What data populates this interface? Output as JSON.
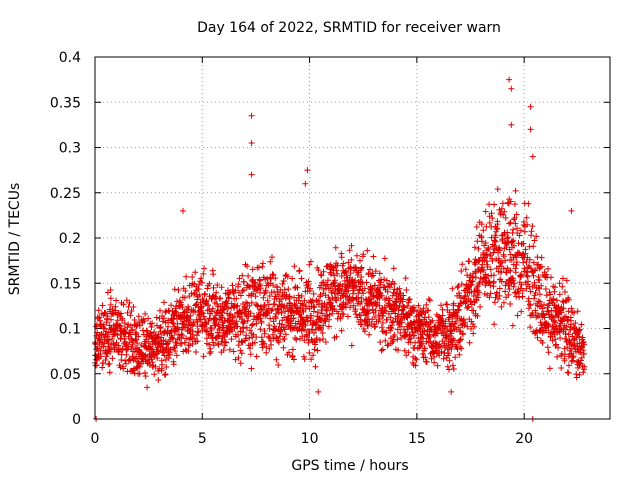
{
  "chart_data": {
    "type": "scatter",
    "title": "Day 164 of 2022, SRMTID for receiver warn",
    "xlabel": "GPS time / hours",
    "ylabel": "SRMTID / TECUs",
    "xlim": [
      0,
      24
    ],
    "ylim": [
      0,
      0.4
    ],
    "xticks": [
      0,
      5,
      10,
      15,
      20
    ],
    "xtick_labels": [
      "0",
      "5",
      "10",
      "15",
      "20"
    ],
    "yticks": [
      0,
      0.05,
      0.1,
      0.15,
      0.2,
      0.25,
      0.3,
      0.35,
      0.4
    ],
    "ytick_labels": [
      "0",
      "0.05",
      "0.1",
      "0.15",
      "0.2",
      "0.25",
      "0.3",
      "0.35",
      "0.4"
    ],
    "grid": true,
    "marker": "plus",
    "marker_color": "#e00000",
    "sampling_interval_hours": 0.0125,
    "series": [
      {
        "name": "SRMTID",
        "envelope_note": "dense cloud of points; typical values per hour (approx.)",
        "hour_profile": [
          {
            "hour": 0,
            "center": 0.08,
            "spread": 0.03
          },
          {
            "hour": 1,
            "center": 0.1,
            "spread": 0.04
          },
          {
            "hour": 2,
            "center": 0.08,
            "spread": 0.03
          },
          {
            "hour": 3,
            "center": 0.08,
            "spread": 0.03
          },
          {
            "hour": 4,
            "center": 0.11,
            "spread": 0.04
          },
          {
            "hour": 5,
            "center": 0.12,
            "spread": 0.04
          },
          {
            "hour": 6,
            "center": 0.11,
            "spread": 0.04
          },
          {
            "hour": 7,
            "center": 0.12,
            "spread": 0.05
          },
          {
            "hour": 8,
            "center": 0.12,
            "spread": 0.05
          },
          {
            "hour": 9,
            "center": 0.12,
            "spread": 0.04
          },
          {
            "hour": 10,
            "center": 0.11,
            "spread": 0.05
          },
          {
            "hour": 11,
            "center": 0.14,
            "spread": 0.04
          },
          {
            "hour": 12,
            "center": 0.14,
            "spread": 0.04
          },
          {
            "hour": 13,
            "center": 0.13,
            "spread": 0.04
          },
          {
            "hour": 14,
            "center": 0.12,
            "spread": 0.04
          },
          {
            "hour": 15,
            "center": 0.1,
            "spread": 0.03
          },
          {
            "hour": 16,
            "center": 0.09,
            "spread": 0.03
          },
          {
            "hour": 17,
            "center": 0.11,
            "spread": 0.04
          },
          {
            "hour": 18,
            "center": 0.17,
            "spread": 0.05
          },
          {
            "hour": 19,
            "center": 0.19,
            "spread": 0.06
          },
          {
            "hour": 20,
            "center": 0.17,
            "spread": 0.06
          },
          {
            "hour": 21,
            "center": 0.12,
            "spread": 0.04
          },
          {
            "hour": 22,
            "center": 0.1,
            "spread": 0.04
          },
          {
            "hour": 22.8,
            "center": 0.07,
            "spread": 0.03
          }
        ],
        "notable_points": [
          {
            "x": 0.05,
            "y": 0.0
          },
          {
            "x": 7.3,
            "y": 0.335
          },
          {
            "x": 7.3,
            "y": 0.305
          },
          {
            "x": 7.3,
            "y": 0.27
          },
          {
            "x": 9.9,
            "y": 0.275
          },
          {
            "x": 9.8,
            "y": 0.26
          },
          {
            "x": 4.1,
            "y": 0.23
          },
          {
            "x": 19.3,
            "y": 0.375
          },
          {
            "x": 19.4,
            "y": 0.365
          },
          {
            "x": 19.4,
            "y": 0.325
          },
          {
            "x": 20.3,
            "y": 0.345
          },
          {
            "x": 20.3,
            "y": 0.32
          },
          {
            "x": 20.4,
            "y": 0.29
          },
          {
            "x": 20.4,
            "y": 0.0
          },
          {
            "x": 22.2,
            "y": 0.23
          },
          {
            "x": 10.4,
            "y": 0.03
          },
          {
            "x": 16.6,
            "y": 0.03
          }
        ]
      }
    ]
  }
}
